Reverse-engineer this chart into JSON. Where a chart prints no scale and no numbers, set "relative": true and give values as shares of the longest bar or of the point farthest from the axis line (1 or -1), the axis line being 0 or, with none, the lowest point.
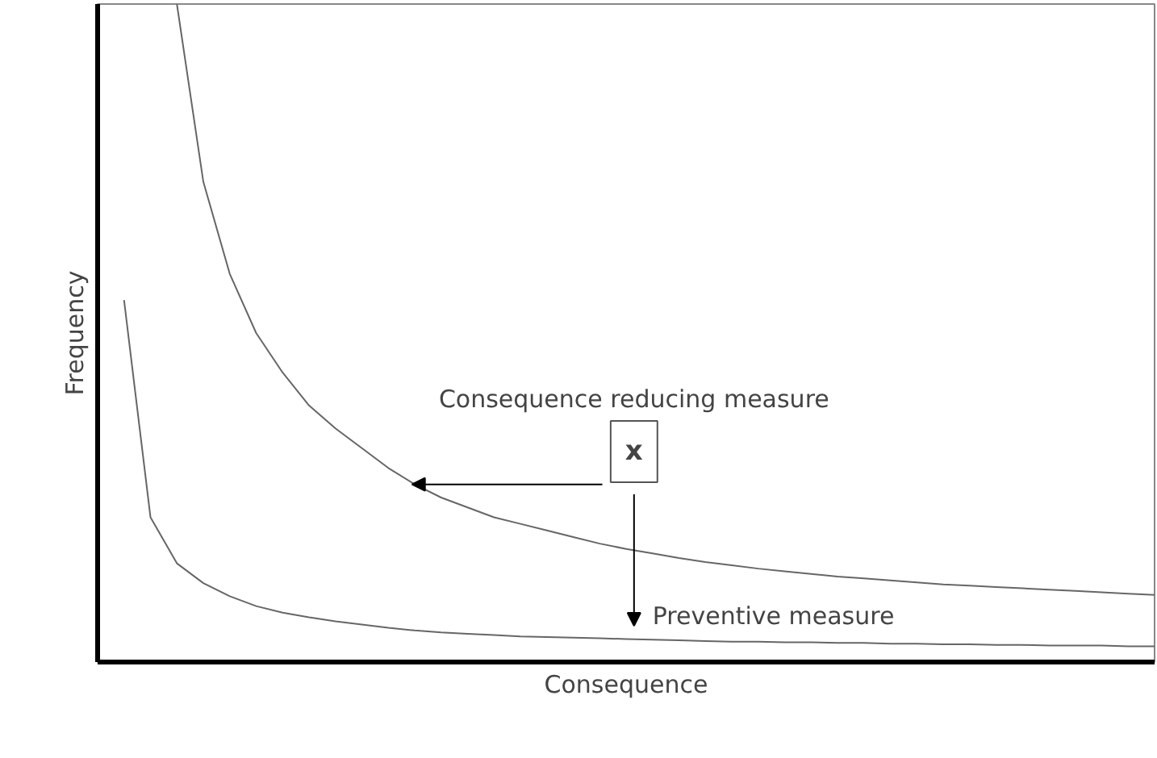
{
  "chart_data": {
    "type": "line",
    "relative": true,
    "xlabel": "Consequence",
    "ylabel": "Frequency",
    "line_style": "solid",
    "categories": [
      null,
      null,
      null,
      null,
      null,
      null,
      null,
      null,
      null,
      null,
      null,
      null,
      null,
      null,
      null,
      null,
      null,
      null,
      null,
      null,
      null,
      null,
      null,
      null,
      null,
      null,
      null,
      null,
      null,
      null,
      null,
      null,
      null,
      null,
      null,
      null,
      null,
      null,
      null,
      null,
      null
    ],
    "series": [
      {
        "color": "#666666",
        "values": [
          null,
          null,
          null,
          1.0,
          0.73,
          0.59,
          0.5,
          0.44,
          0.39,
          0.355,
          0.325,
          0.295,
          0.27,
          0.25,
          0.235,
          0.22,
          0.21,
          0.2,
          0.19,
          0.18,
          0.172,
          0.165,
          0.158,
          0.152,
          0.147,
          0.142,
          0.138,
          0.134,
          0.13,
          0.127,
          0.124,
          0.121,
          0.118,
          0.116,
          0.114,
          0.112,
          0.11,
          0.108,
          0.106,
          0.104,
          0.102
        ]
      },
      {
        "color": "#666666",
        "values": [
          null,
          0.55,
          0.22,
          0.15,
          0.12,
          0.1,
          0.085,
          0.075,
          0.068,
          0.062,
          0.057,
          0.052,
          0.048,
          0.045,
          0.043,
          0.041,
          0.039,
          0.038,
          0.037,
          0.036,
          0.035,
          0.034,
          0.033,
          0.032,
          0.031,
          0.031,
          0.03,
          0.03,
          0.029,
          0.029,
          0.028,
          0.028,
          0.027,
          0.027,
          0.026,
          0.026,
          0.025,
          0.025,
          0.025,
          0.024,
          0.024
        ]
      }
    ],
    "annotations": [
      "Consequence reducing measure",
      "x",
      "Preventive measure"
    ]
  }
}
